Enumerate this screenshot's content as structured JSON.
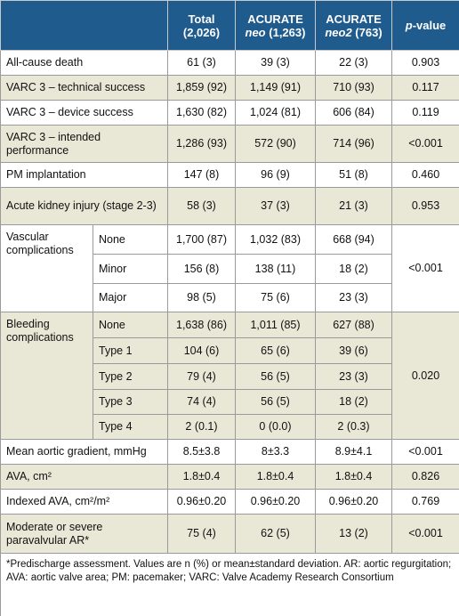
{
  "header": {
    "columns": [
      {
        "line1": "Total",
        "line2": "(2,026)"
      },
      {
        "line1": "ACURATE",
        "italic": "neo",
        "line2": "(1,263)"
      },
      {
        "line1": "ACURATE",
        "italic": "neo2",
        "line2": "(763)"
      }
    ],
    "pvalue": {
      "italic": "p",
      "rest": "-value"
    }
  },
  "rows": [
    {
      "label": "All-cause death",
      "values": [
        "61 (3)",
        "39 (3)",
        "22 (3)"
      ],
      "p": "0.903"
    },
    {
      "label": "VARC 3 – technical success",
      "values": [
        "1,859 (92)",
        "1,149 (91)",
        "710 (93)"
      ],
      "p": "0.117"
    },
    {
      "label": "VARC 3 – device success",
      "values": [
        "1,630 (82)",
        "1,024 (81)",
        "606 (84)"
      ],
      "p": "0.119"
    },
    {
      "label": "VARC 3 – intended performance",
      "values": [
        "1,286 (93)",
        "572 (90)",
        "714 (96)"
      ],
      "p": "<0.001"
    },
    {
      "label": "PM implantation",
      "values": [
        "147 (8)",
        "96 (9)",
        "51 (8)"
      ],
      "p": "0.460"
    },
    {
      "label": "Acute kidney injury (stage 2-3)",
      "values": [
        "58 (3)",
        "37 (3)",
        "21 (3)"
      ],
      "p": "0.953"
    },
    {
      "label": "Vascular complications",
      "p": "<0.001",
      "subrows": [
        {
          "label": "None",
          "values": [
            "1,700 (87)",
            "1,032 (83)",
            "668 (94)"
          ]
        },
        {
          "label": "Minor",
          "values": [
            "156 (8)",
            "138 (11)",
            "18 (2)"
          ]
        },
        {
          "label": "Major",
          "values": [
            "98 (5)",
            "75 (6)",
            "23 (3)"
          ]
        }
      ]
    },
    {
      "label": "Bleeding complications",
      "p": "0.020",
      "subrows": [
        {
          "label": "None",
          "values": [
            "1,638 (86)",
            "1,011 (85)",
            "627 (88)"
          ]
        },
        {
          "label": "Type 1",
          "values": [
            "104 (6)",
            "65 (6)",
            "39 (6)"
          ]
        },
        {
          "label": "Type 2",
          "values": [
            "79 (4)",
            "56 (5)",
            "23 (3)"
          ]
        },
        {
          "label": "Type 3",
          "values": [
            "74 (4)",
            "56 (5)",
            "18 (2)"
          ]
        },
        {
          "label": "Type 4",
          "values": [
            "2 (0.1)",
            "0 (0.0)",
            "2 (0.3)"
          ]
        }
      ]
    },
    {
      "label": "Mean aortic gradient, mmHg",
      "values": [
        "8.5±3.8",
        "8±3.3",
        "8.9±4.1"
      ],
      "p": "<0.001"
    },
    {
      "label": "AVA, cm²",
      "values": [
        "1.8±0.4",
        "1.8±0.4",
        "1.8±0.4"
      ],
      "p": "0.826"
    },
    {
      "label": "Indexed AVA, cm²/m²",
      "values": [
        "0.96±0.20",
        "0.96±0.20",
        "0.96±0.20"
      ],
      "p": "0.769"
    },
    {
      "label": "Moderate or severe paravalvular AR*",
      "values": [
        "75 (4)",
        "62 (5)",
        "13 (2)"
      ],
      "p": "<0.001"
    }
  ],
  "footnote": "*Predischarge assessment. Values are n (%) or mean±standard deviation. AR: aortic regurgitation; AVA: aortic valve area; PM: pacemaker; VARC: Valve Academy Research Consortium"
}
